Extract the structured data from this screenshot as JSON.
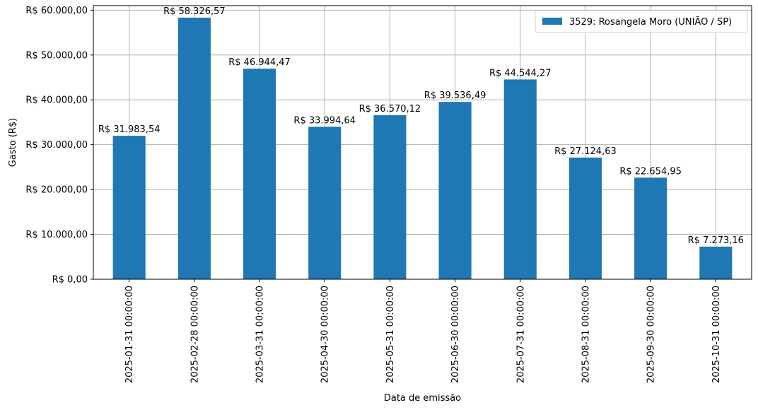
{
  "chart_data": {
    "type": "bar",
    "title": "",
    "xlabel": "Data de emissão",
    "ylabel": "Gasto (R$)",
    "ylim": [
      0,
      61000
    ],
    "yticks": [
      0,
      10000,
      20000,
      30000,
      40000,
      50000,
      60000
    ],
    "ytick_labels": [
      "R$ 0,00",
      "R$ 10.000,00",
      "R$ 20.000,00",
      "R$ 30.000,00",
      "R$ 40.000,00",
      "R$ 50.000,00",
      "R$ 60.000,00"
    ],
    "grid": true,
    "legend_position": "top-right",
    "categories": [
      "2025-01-31 00:00:00",
      "2025-02-28 00:00:00",
      "2025-03-31 00:00:00",
      "2025-04-30 00:00:00",
      "2025-05-31 00:00:00",
      "2025-06-30 00:00:00",
      "2025-07-31 00:00:00",
      "2025-08-31 00:00:00",
      "2025-09-30 00:00:00",
      "2025-10-31 00:00:00"
    ],
    "series": [
      {
        "name": "3529: Rosangela Moro (UNIÃO / SP)",
        "color": "#1f77b4",
        "values": [
          31983.54,
          58326.57,
          46944.47,
          33994.64,
          36570.12,
          39536.49,
          44544.27,
          27124.63,
          22654.95,
          7273.16
        ],
        "labels": [
          "R$ 31.983,54",
          "R$ 58.326,57",
          "R$ 46.944,47",
          "R$ 33.994,64",
          "R$ 36.570,12",
          "R$ 39.536,49",
          "R$ 44.544,27",
          "R$ 27.124,63",
          "R$ 22.654,95",
          "R$ 7.273,16"
        ]
      }
    ]
  }
}
